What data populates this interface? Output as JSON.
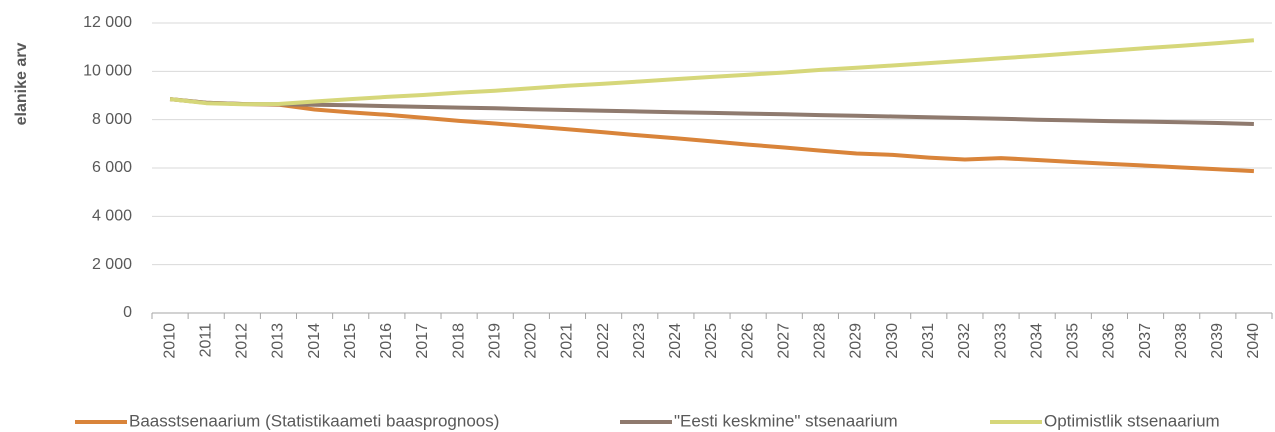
{
  "chart_data": {
    "type": "line",
    "y_label": "elanike arv",
    "categories": [
      "2010",
      "2011",
      "2012",
      "2013",
      "2014",
      "2015",
      "2016",
      "2017",
      "2018",
      "2019",
      "2020",
      "2021",
      "2022",
      "2023",
      "2024",
      "2025",
      "2026",
      "2027",
      "2028",
      "2029",
      "2030",
      "2031",
      "2032",
      "2033",
      "2034",
      "2035",
      "2036",
      "2037",
      "2038",
      "2039",
      "2040"
    ],
    "series": [
      {
        "name": "Baasstsenaarium (Statistikaameti baasprognoos)",
        "color": "#d9843a",
        "values": [
          8850,
          8700,
          8650,
          8620,
          8420,
          8300,
          8200,
          8080,
          7950,
          7840,
          7720,
          7600,
          7480,
          7350,
          7230,
          7100,
          6970,
          6850,
          6720,
          6600,
          6540,
          6430,
          6350,
          6410,
          6330,
          6250,
          6170,
          6100,
          6020,
          5950,
          5870
        ]
      },
      {
        "name": "\"Eesti keskmine\" stsenaarium",
        "color": "#8f7a6e",
        "values": [
          8850,
          8700,
          8650,
          8640,
          8620,
          8600,
          8560,
          8530,
          8500,
          8470,
          8430,
          8400,
          8370,
          8340,
          8310,
          8280,
          8250,
          8220,
          8190,
          8160,
          8130,
          8100,
          8070,
          8040,
          8000,
          7970,
          7940,
          7920,
          7890,
          7860,
          7820
        ]
      },
      {
        "name": "Optimistlik stsenaarium",
        "color": "#d6d77a",
        "values": [
          8850,
          8680,
          8640,
          8650,
          8750,
          8850,
          8940,
          9020,
          9120,
          9200,
          9300,
          9400,
          9490,
          9580,
          9680,
          9770,
          9860,
          9950,
          10060,
          10150,
          10240,
          10340,
          10440,
          10540,
          10640,
          10750,
          10850,
          10960,
          11060,
          11170,
          11290
        ]
      }
    ],
    "ylim": [
      0,
      12000
    ],
    "yticks": [
      0,
      {
        "value": 2000,
        "label": "2 000"
      },
      {
        "value": 4000,
        "label": "4 000"
      },
      {
        "value": 6000,
        "label": "6 000"
      },
      {
        "value": 8000,
        "label": "8 000"
      },
      {
        "value": 10000,
        "label": "10 000"
      },
      {
        "value": 12000,
        "label": "12 000"
      }
    ],
    "grid": true,
    "legend": "bottom"
  }
}
